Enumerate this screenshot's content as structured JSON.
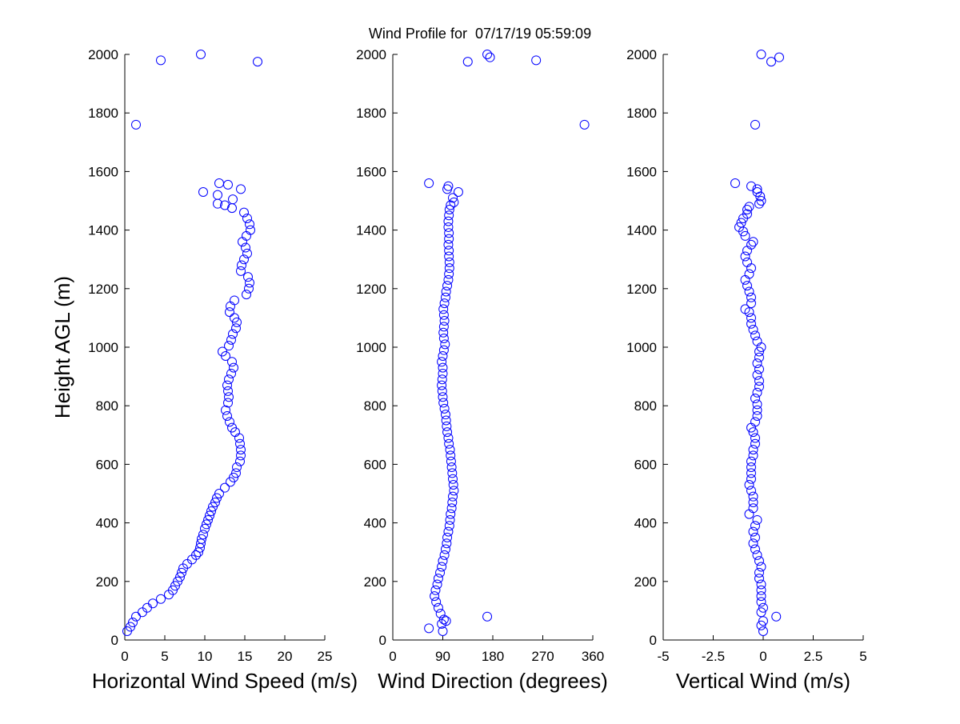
{
  "figure": {
    "title": "Wind Profile for  07/17/19 05:59:09",
    "marker_color": "#0000ff"
  },
  "chart_data": [
    {
      "type": "scatter",
      "title": "",
      "xlabel": "Horizontal Wind Speed (m/s)",
      "ylabel": "Height AGL (m)",
      "xlim": [
        0,
        25
      ],
      "ylim": [
        0,
        2000
      ],
      "xticks": [
        "0",
        "5",
        "10",
        "15",
        "20",
        "25"
      ],
      "yticks": [
        "0",
        "200",
        "400",
        "600",
        "800",
        "1000",
        "1200",
        "1400",
        "1600",
        "1800",
        "2000"
      ],
      "points": [
        [
          0.3,
          30
        ],
        [
          0.7,
          45
        ],
        [
          1,
          60
        ],
        [
          1.4,
          80
        ],
        [
          2.2,
          95
        ],
        [
          2.8,
          110
        ],
        [
          3.5,
          125
        ],
        [
          4.5,
          140
        ],
        [
          5.5,
          155
        ],
        [
          6,
          170
        ],
        [
          6.3,
          185
        ],
        [
          6.6,
          200
        ],
        [
          6.9,
          215
        ],
        [
          7.1,
          230
        ],
        [
          7.3,
          245
        ],
        [
          7.8,
          260
        ],
        [
          8.4,
          275
        ],
        [
          8.9,
          290
        ],
        [
          9.2,
          300
        ],
        [
          9.4,
          315
        ],
        [
          9.5,
          330
        ],
        [
          9.6,
          345
        ],
        [
          9.8,
          360
        ],
        [
          10,
          380
        ],
        [
          10.2,
          395
        ],
        [
          10.4,
          410
        ],
        [
          10.6,
          425
        ],
        [
          10.8,
          440
        ],
        [
          11,
          455
        ],
        [
          11.3,
          470
        ],
        [
          11.5,
          485
        ],
        [
          11.8,
          500
        ],
        [
          12.5,
          520
        ],
        [
          13.2,
          540
        ],
        [
          13.6,
          555
        ],
        [
          13.9,
          570
        ],
        [
          14,
          590
        ],
        [
          14.4,
          610
        ],
        [
          14.5,
          630
        ],
        [
          14.5,
          650
        ],
        [
          14.4,
          670
        ],
        [
          14.3,
          690
        ],
        [
          13.8,
          710
        ],
        [
          13.4,
          725
        ],
        [
          13.1,
          745
        ],
        [
          12.8,
          765
        ],
        [
          12.6,
          785
        ],
        [
          12.9,
          810
        ],
        [
          13,
          830
        ],
        [
          12.9,
          850
        ],
        [
          12.8,
          870
        ],
        [
          13,
          890
        ],
        [
          13.3,
          910
        ],
        [
          13.6,
          930
        ],
        [
          13.4,
          950
        ],
        [
          12.6,
          970
        ],
        [
          12.2,
          985
        ],
        [
          13,
          1005
        ],
        [
          13.3,
          1025
        ],
        [
          13.5,
          1045
        ],
        [
          13.9,
          1065
        ],
        [
          14,
          1085
        ],
        [
          13.7,
          1100
        ],
        [
          13.1,
          1120
        ],
        [
          13.2,
          1140
        ],
        [
          13.7,
          1160
        ],
        [
          15.2,
          1180
        ],
        [
          15.5,
          1200
        ],
        [
          15.6,
          1220
        ],
        [
          15.4,
          1240
        ],
        [
          14.5,
          1260
        ],
        [
          14.6,
          1280
        ],
        [
          14.9,
          1300
        ],
        [
          15.3,
          1320
        ],
        [
          15.1,
          1340
        ],
        [
          14.7,
          1360
        ],
        [
          15.2,
          1380
        ],
        [
          15.7,
          1400
        ],
        [
          15.6,
          1420
        ],
        [
          15.3,
          1440
        ],
        [
          14.9,
          1460
        ],
        [
          13.4,
          1475
        ],
        [
          12.5,
          1485
        ],
        [
          11.6,
          1490
        ],
        [
          13.5,
          1505
        ],
        [
          11.6,
          1520
        ],
        [
          9.8,
          1530
        ],
        [
          14.5,
          1540
        ],
        [
          11.8,
          1560
        ],
        [
          12.9,
          1555
        ],
        [
          1.4,
          1760
        ],
        [
          4.5,
          1980
        ],
        [
          9.5,
          2000
        ],
        [
          16.6,
          1975
        ]
      ]
    },
    {
      "type": "scatter",
      "title": "",
      "xlabel": "Wind Direction (degrees)",
      "ylabel": "",
      "xlim": [
        0,
        360
      ],
      "ylim": [
        0,
        2000
      ],
      "xticks": [
        "0",
        "90",
        "180",
        "270",
        "360"
      ],
      "yticks": [
        "0",
        "200",
        "400",
        "600",
        "800",
        "1000",
        "1200",
        "1400",
        "1600",
        "1800",
        "2000"
      ],
      "points": [
        [
          90,
          30
        ],
        [
          65,
          40
        ],
        [
          88,
          55
        ],
        [
          92,
          70
        ],
        [
          170,
          80
        ],
        [
          96,
          65
        ],
        [
          86,
          90
        ],
        [
          82,
          110
        ],
        [
          78,
          130
        ],
        [
          75,
          150
        ],
        [
          77,
          170
        ],
        [
          80,
          190
        ],
        [
          82,
          210
        ],
        [
          85,
          230
        ],
        [
          88,
          250
        ],
        [
          90,
          270
        ],
        [
          93,
          290
        ],
        [
          95,
          310
        ],
        [
          97,
          330
        ],
        [
          98,
          350
        ],
        [
          100,
          370
        ],
        [
          102,
          390
        ],
        [
          103,
          410
        ],
        [
          104,
          430
        ],
        [
          106,
          450
        ],
        [
          107,
          470
        ],
        [
          108,
          490
        ],
        [
          110,
          510
        ],
        [
          109,
          530
        ],
        [
          108,
          550
        ],
        [
          107,
          570
        ],
        [
          106,
          590
        ],
        [
          105,
          610
        ],
        [
          104,
          630
        ],
        [
          103,
          650
        ],
        [
          101,
          670
        ],
        [
          100,
          690
        ],
        [
          98,
          710
        ],
        [
          97,
          730
        ],
        [
          96,
          750
        ],
        [
          95,
          770
        ],
        [
          93,
          790
        ],
        [
          91,
          810
        ],
        [
          90,
          830
        ],
        [
          89,
          850
        ],
        [
          88,
          870
        ],
        [
          89,
          890
        ],
        [
          90,
          910
        ],
        [
          90,
          930
        ],
        [
          88,
          950
        ],
        [
          90,
          970
        ],
        [
          92,
          990
        ],
        [
          94,
          1010
        ],
        [
          92,
          1030
        ],
        [
          91,
          1050
        ],
        [
          92,
          1070
        ],
        [
          93,
          1090
        ],
        [
          92,
          1110
        ],
        [
          91,
          1130
        ],
        [
          93,
          1150
        ],
        [
          95,
          1170
        ],
        [
          96,
          1190
        ],
        [
          98,
          1210
        ],
        [
          100,
          1230
        ],
        [
          101,
          1250
        ],
        [
          102,
          1270
        ],
        [
          102,
          1290
        ],
        [
          101,
          1310
        ],
        [
          101,
          1330
        ],
        [
          100,
          1350
        ],
        [
          101,
          1370
        ],
        [
          101,
          1390
        ],
        [
          100,
          1410
        ],
        [
          100,
          1430
        ],
        [
          101,
          1450
        ],
        [
          102,
          1470
        ],
        [
          104,
          1485
        ],
        [
          110,
          1495
        ],
        [
          108,
          1510
        ],
        [
          118,
          1530
        ],
        [
          98,
          1540
        ],
        [
          100,
          1550
        ],
        [
          65,
          1560
        ],
        [
          135,
          1975
        ],
        [
          170,
          2000
        ],
        [
          175,
          1990
        ],
        [
          258,
          1980
        ],
        [
          345,
          1760
        ]
      ]
    },
    {
      "type": "scatter",
      "title": "",
      "xlabel": "Vertical Wind (m/s)",
      "ylabel": "",
      "xlim": [
        -5,
        5
      ],
      "ylim": [
        0,
        2000
      ],
      "xticks": [
        "-5",
        "-2.5",
        "0",
        "2.5",
        "5"
      ],
      "yticks": [
        "0",
        "200",
        "400",
        "600",
        "800",
        "1000",
        "1200",
        "1400",
        "1600",
        "1800",
        "2000"
      ],
      "points": [
        [
          0,
          30
        ],
        [
          -0.1,
          50
        ],
        [
          0,
          65
        ],
        [
          0.65,
          80
        ],
        [
          -0.1,
          95
        ],
        [
          0,
          110
        ],
        [
          -0.1,
          130
        ],
        [
          -0.1,
          150
        ],
        [
          -0.1,
          170
        ],
        [
          -0.1,
          190
        ],
        [
          -0.2,
          210
        ],
        [
          -0.2,
          230
        ],
        [
          -0.1,
          250
        ],
        [
          -0.2,
          270
        ],
        [
          -0.3,
          290
        ],
        [
          -0.4,
          310
        ],
        [
          -0.5,
          330
        ],
        [
          -0.4,
          350
        ],
        [
          -0.5,
          370
        ],
        [
          -0.4,
          390
        ],
        [
          -0.3,
          410
        ],
        [
          -0.7,
          430
        ],
        [
          -0.5,
          450
        ],
        [
          -0.5,
          470
        ],
        [
          -0.5,
          490
        ],
        [
          -0.6,
          510
        ],
        [
          -0.7,
          530
        ],
        [
          -0.6,
          550
        ],
        [
          -0.6,
          570
        ],
        [
          -0.6,
          590
        ],
        [
          -0.6,
          610
        ],
        [
          -0.5,
          630
        ],
        [
          -0.5,
          650
        ],
        [
          -0.4,
          670
        ],
        [
          -0.4,
          690
        ],
        [
          -0.5,
          710
        ],
        [
          -0.6,
          725
        ],
        [
          -0.4,
          745
        ],
        [
          -0.3,
          765
        ],
        [
          -0.3,
          785
        ],
        [
          -0.3,
          805
        ],
        [
          -0.4,
          825
        ],
        [
          -0.3,
          845
        ],
        [
          -0.2,
          865
        ],
        [
          -0.2,
          885
        ],
        [
          -0.3,
          905
        ],
        [
          -0.2,
          925
        ],
        [
          -0.3,
          945
        ],
        [
          -0.2,
          965
        ],
        [
          -0.2,
          985
        ],
        [
          -0.1,
          1000
        ],
        [
          -0.3,
          1020
        ],
        [
          -0.4,
          1040
        ],
        [
          -0.5,
          1060
        ],
        [
          -0.6,
          1080
        ],
        [
          -0.6,
          1100
        ],
        [
          -0.7,
          1120
        ],
        [
          -0.9,
          1130
        ],
        [
          -0.6,
          1150
        ],
        [
          -0.6,
          1170
        ],
        [
          -0.7,
          1190
        ],
        [
          -0.8,
          1210
        ],
        [
          -0.9,
          1230
        ],
        [
          -0.7,
          1250
        ],
        [
          -0.6,
          1270
        ],
        [
          -0.8,
          1290
        ],
        [
          -0.9,
          1310
        ],
        [
          -0.8,
          1330
        ],
        [
          -0.6,
          1350
        ],
        [
          -0.5,
          1360
        ],
        [
          -0.9,
          1380
        ],
        [
          -1,
          1395
        ],
        [
          -1.2,
          1410
        ],
        [
          -1.1,
          1425
        ],
        [
          -1,
          1440
        ],
        [
          -0.8,
          1455
        ],
        [
          -0.8,
          1470
        ],
        [
          -0.7,
          1480
        ],
        [
          -0.2,
          1490
        ],
        [
          -0.1,
          1500
        ],
        [
          -0.15,
          1515
        ],
        [
          -0.3,
          1530
        ],
        [
          -0.6,
          1550
        ],
        [
          -1.4,
          1560
        ],
        [
          -0.3,
          1540
        ],
        [
          -0.4,
          1760
        ],
        [
          -0.1,
          2000
        ],
        [
          0.4,
          1975
        ],
        [
          0.8,
          1990
        ]
      ]
    }
  ]
}
